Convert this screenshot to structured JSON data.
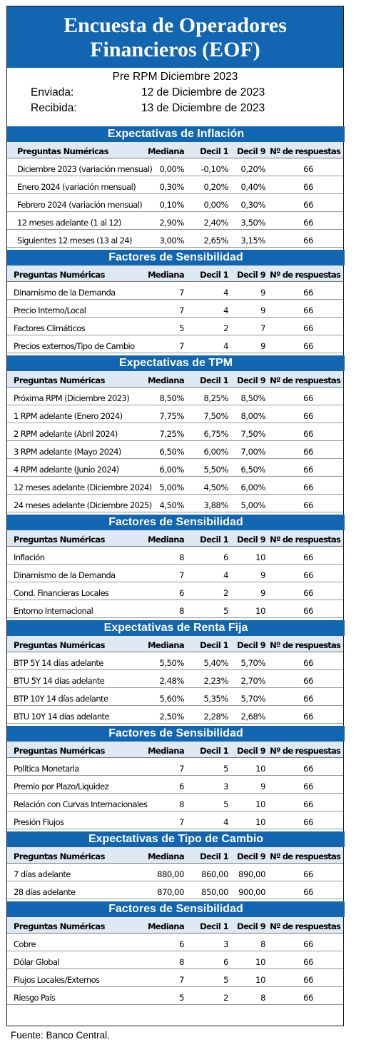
{
  "title_line1": "Encuesta de Operadores",
  "title_line2": "Financieros (EOF)",
  "subtitle": "Pre RPM Diciembre 2023",
  "sent_label": "Enviada:",
  "sent_value": "12 de Diciembre de 2023",
  "received_label": "Recibida:",
  "received_value": "13 de Diciembre de 2023",
  "columns": [
    "Preguntas Numéricas",
    "Mediana",
    "Decil 1",
    "Decil 9",
    "Nº de respuestas"
  ],
  "sections": [
    {
      "heading": "Expectativas de Inflación",
      "rows": [
        [
          "Diciembre 2023 (variación mensual)",
          "0,00%",
          "-0,10%",
          "0,20%",
          "66"
        ],
        [
          "Enero 2024 (variación mensual)",
          "0,30%",
          "0,20%",
          "0,40%",
          "66"
        ],
        [
          "Febrero 2024 (variación mensual)",
          "0,10%",
          "0,00%",
          "0,30%",
          "66"
        ],
        [
          "12 meses adelante (1 al 12)",
          "2,90%",
          "2,40%",
          "3,50%",
          "66"
        ],
        [
          "Siguientes 12 meses (13 al 24)",
          "3,00%",
          "2,65%",
          "3,15%",
          "66"
        ]
      ]
    },
    {
      "heading": "Factores de Sensibilidad",
      "rows": [
        [
          "Dinamismo de la Demanda",
          "7",
          "4",
          "9",
          "66"
        ],
        [
          "Precio Interno/Local",
          "7",
          "4",
          "9",
          "66"
        ],
        [
          "Factores Climáticos",
          "5",
          "2",
          "7",
          "66"
        ],
        [
          "Precios externos/Tipo de Cambio",
          "7",
          "4",
          "9",
          "66"
        ]
      ]
    },
    {
      "heading": "Expectativas de TPM",
      "rows": [
        [
          "Próxima RPM (Diciembre 2023)",
          "8,50%",
          "8,25%",
          "8,50%",
          "66"
        ],
        [
          "1 RPM adelante (Enero 2024)",
          "7,75%",
          "7,50%",
          "8,00%",
          "66"
        ],
        [
          "2 RPM adelante (Abril 2024)",
          "7,25%",
          "6,75%",
          "7,50%",
          "66"
        ],
        [
          "3 RPM adelante (Mayo 2024)",
          "6,50%",
          "6,00%",
          "7,00%",
          "66"
        ],
        [
          "4 RPM adelante (Junio 2024)",
          "6,00%",
          "5,50%",
          "6,50%",
          "66"
        ],
        [
          "12 meses adelante (Diciembre 2024)",
          "5,00%",
          "4,50%",
          "6,00%",
          "66"
        ],
        [
          "24 meses adelante (Diciembre 2025)",
          "4,50%",
          "3,88%",
          "5,00%",
          "66"
        ]
      ]
    },
    {
      "heading": "Factores de Sensibilidad",
      "rows": [
        [
          "Inflación",
          "8",
          "6",
          "10",
          "66"
        ],
        [
          "Dinamismo de la Demanda",
          "7",
          "4",
          "9",
          "66"
        ],
        [
          "Cond. Financieras Locales",
          "6",
          "2",
          "9",
          "66"
        ],
        [
          "Entorno Internacional",
          "8",
          "5",
          "10",
          "66"
        ]
      ]
    },
    {
      "heading": "Expectativas  de Renta Fija",
      "rows": [
        [
          "BTP 5Y 14 días adelante",
          "5,50%",
          "5,40%",
          "5,70%",
          "66"
        ],
        [
          "BTU 5Y 14 días adelante",
          "2,48%",
          "2,23%",
          "2,70%",
          "66"
        ],
        [
          "BTP 10Y 14 días adelante",
          "5,60%",
          "5,35%",
          "5,70%",
          "66"
        ],
        [
          "BTU 10Y 14 días adelante",
          "2,50%",
          "2,28%",
          "2,68%",
          "66"
        ]
      ]
    },
    {
      "heading": "Factores de Sensibilidad",
      "rows": [
        [
          "Política Monetaria",
          "7",
          "5",
          "10",
          "66"
        ],
        [
          "Premio por Plazo/Liquidez",
          "6",
          "3",
          "9",
          "66"
        ],
        [
          "Relación con Curvas Internacionales",
          "8",
          "5",
          "10",
          "66"
        ],
        [
          "Presión Flujos",
          "7",
          "4",
          "10",
          "66"
        ]
      ]
    },
    {
      "heading": "Expectativas  de Tipo de Cambio",
      "rows": [
        [
          "7 días adelante",
          "880,00",
          "860,00",
          "890,00",
          "66"
        ],
        [
          "28 días adelante",
          "870,00",
          "850,00",
          "900,00",
          "66"
        ]
      ]
    },
    {
      "heading": "Factores de Sensibilidad",
      "rows": [
        [
          "Cobre",
          "6",
          "3",
          "8",
          "66"
        ],
        [
          "Dólar Global",
          "8",
          "6",
          "10",
          "66"
        ],
        [
          "Flujos Locales/Externos",
          "7",
          "5",
          "10",
          "66"
        ],
        [
          "Riesgo País",
          "5",
          "2",
          "8",
          "66"
        ]
      ]
    }
  ],
  "source": "Fuente: Banco Central."
}
